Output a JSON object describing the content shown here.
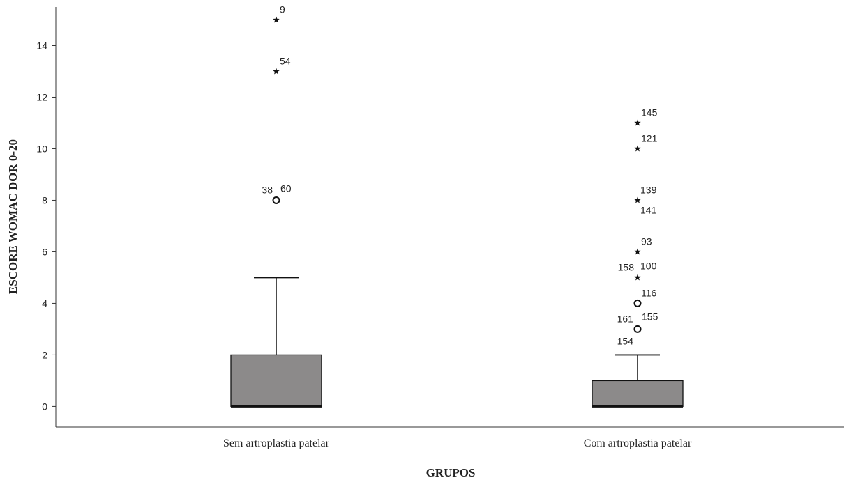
{
  "chart_data": {
    "type": "boxplot",
    "xlabel": "GRUPOS",
    "ylabel": "ESCORE WOMAC DOR 0-20",
    "ylim": [
      -0.8,
      15.5
    ],
    "yticks": [
      0,
      2,
      4,
      6,
      8,
      10,
      12,
      14
    ],
    "grid": false,
    "categories": [
      "Sem artroplastia patelar",
      "Com artroplastia patelar"
    ],
    "boxes": [
      {
        "category": "Sem artroplastia patelar",
        "q1": 0,
        "median": 0,
        "q3": 2,
        "whisker_low": 0,
        "whisker_high": 5,
        "outliers": [
          {
            "value": 8,
            "marker": "circle",
            "labels": [
              "38",
              "60"
            ]
          },
          {
            "value": 13,
            "marker": "star",
            "labels": [
              "54"
            ]
          },
          {
            "value": 15,
            "marker": "star",
            "labels": [
              "9"
            ]
          }
        ]
      },
      {
        "category": "Com artroplastia patelar",
        "q1": 0,
        "median": 0,
        "q3": 1,
        "whisker_low": 0,
        "whisker_high": 2,
        "outliers": [
          {
            "value": 3,
            "marker": "circle",
            "labels": [
              "161",
              "155",
              "154"
            ]
          },
          {
            "value": 4,
            "marker": "circle",
            "labels": [
              "116"
            ]
          },
          {
            "value": 5,
            "marker": "star",
            "labels": [
              "158",
              "100"
            ]
          },
          {
            "value": 6,
            "marker": "star",
            "labels": [
              "93"
            ]
          },
          {
            "value": 8,
            "marker": "star",
            "labels": [
              "139",
              "141"
            ]
          },
          {
            "value": 10,
            "marker": "star",
            "labels": [
              "121"
            ]
          },
          {
            "value": 11,
            "marker": "star",
            "labels": [
              "145"
            ]
          }
        ]
      }
    ],
    "colors": {
      "box_fill": "#8c8a8a",
      "line": "#111111"
    }
  }
}
